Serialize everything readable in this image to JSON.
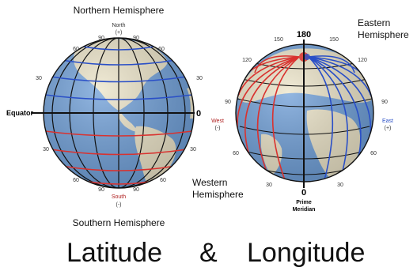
{
  "labels": {
    "northern_hemisphere": "Northern Hemisphere",
    "southern_hemisphere": "Southern Hemisphere",
    "eastern_hemisphere_1": "Eastern",
    "eastern_hemisphere_2": "Hemisphere",
    "western_hemisphere_1": "Western",
    "western_hemisphere_2": "Hemisphere",
    "north": "North",
    "north_sign": "(+)",
    "south": "South",
    "south_sign": "(-)",
    "equator": "Equator",
    "equator_zero": "0",
    "west": "West",
    "west_sign": "(-)",
    "east": "East",
    "east_sign": "(+)",
    "lon_180": "180",
    "prime_zero": "0",
    "prime_meridian_1": "Prime",
    "prime_meridian_2": "Meridian",
    "title_left": "Latitude",
    "title_amp": "&",
    "title_right": "Longitude"
  },
  "latitude_ticks": {
    "top_90_left": "90",
    "top_90_right": "90",
    "top_60_left": "60",
    "top_60_right": "60",
    "n30_left": "30",
    "n30_right": "30",
    "s30_left": "30",
    "s30_right": "30",
    "s60_left": "60",
    "s60_right": "60",
    "bot_90_left": "90",
    "bot_90_right": "90"
  },
  "longitude_ticks": {
    "w150": "150",
    "e150": "150",
    "w120": "120",
    "e120": "120",
    "w90": "90",
    "e90": "90",
    "w60": "60",
    "e60": "60",
    "w30": "30",
    "e30": "30"
  },
  "colors": {
    "ocean": "#6f9fd8",
    "land": "#ece4c8",
    "grid_north": "#2a4fc7",
    "grid_south": "#d9322f",
    "grid_black": "#111111"
  }
}
